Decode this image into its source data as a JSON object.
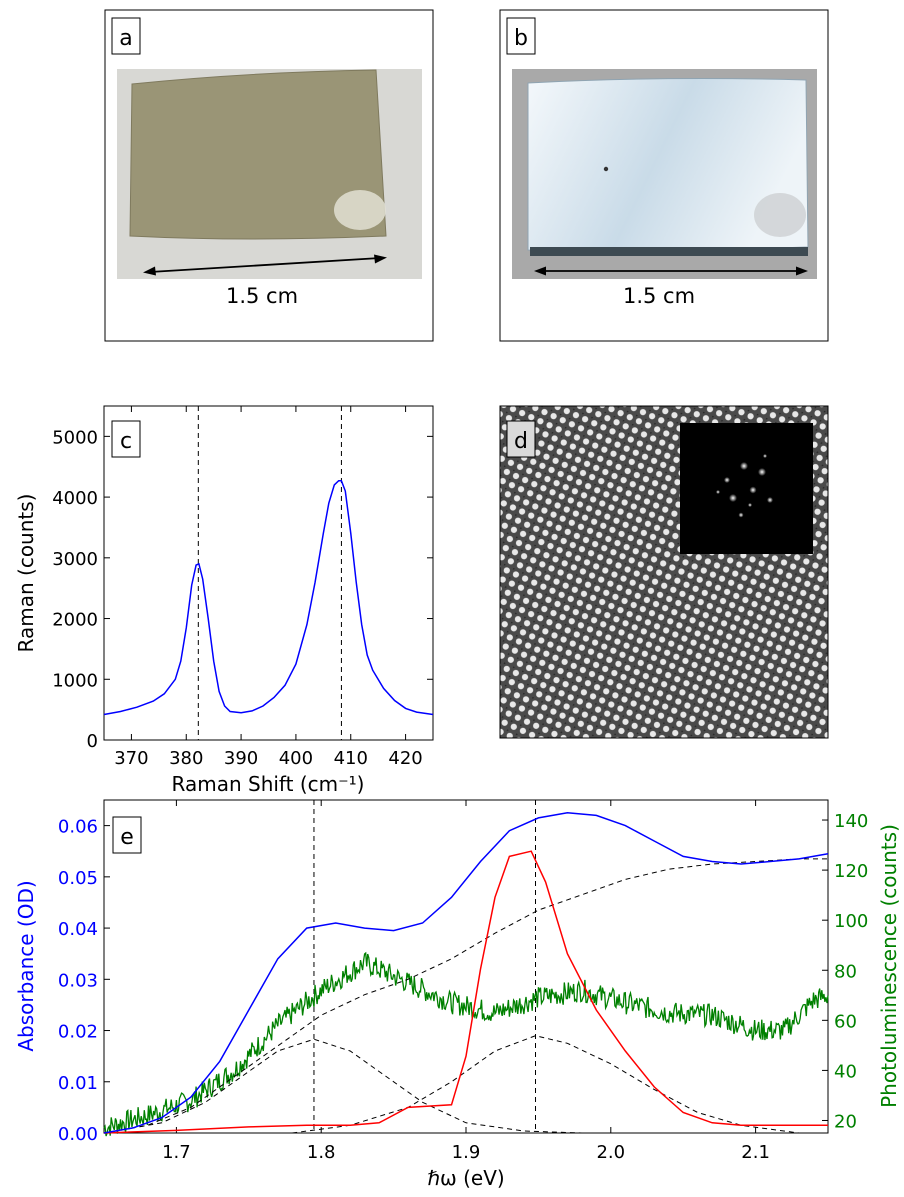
{
  "panels": {
    "a": {
      "label": "a",
      "scale_label": "1.5 cm"
    },
    "b": {
      "label": "b",
      "scale_label": "1.5 cm"
    },
    "c": {
      "label": "c"
    },
    "d": {
      "label": "d"
    },
    "e": {
      "label": "e"
    }
  },
  "colors": {
    "absorbance": "#0000ff",
    "photoluminescence": "#008000",
    "pl_peak": "#ff0000",
    "fit": "#000000",
    "raman": "#0000ff",
    "film_a": "#9a9576",
    "film_b": "#d9e6ee"
  },
  "chart_data": [
    {
      "panel": "c",
      "type": "line",
      "xlabel": "Raman Shift (cm⁻¹)",
      "ylabel": "Raman (counts)",
      "xlim": [
        365,
        425
      ],
      "ylim": [
        0,
        5500
      ],
      "xticks": [
        370,
        380,
        390,
        400,
        410,
        420
      ],
      "yticks": [
        0,
        1000,
        2000,
        3000,
        4000,
        5000
      ],
      "vlines": [
        382.2,
        408.3
      ],
      "series": [
        {
          "x": [
            365,
            368,
            371,
            374,
            376,
            378,
            379,
            380,
            381,
            381.8,
            382.3,
            383,
            384,
            385,
            386,
            387,
            388,
            390,
            392,
            394,
            396,
            398,
            400,
            402,
            403.5,
            405,
            406,
            407,
            407.8,
            408.3,
            409,
            410,
            411,
            412,
            413,
            414,
            416,
            418,
            420,
            422,
            425
          ],
          "values": [
            420,
            470,
            540,
            640,
            760,
            1000,
            1300,
            1850,
            2550,
            2880,
            2900,
            2650,
            2000,
            1300,
            800,
            560,
            470,
            450,
            480,
            560,
            700,
            900,
            1250,
            1900,
            2600,
            3400,
            3900,
            4200,
            4270,
            4270,
            4100,
            3400,
            2600,
            1900,
            1400,
            1150,
            850,
            650,
            520,
            460,
            420
          ]
        }
      ]
    },
    {
      "panel": "e",
      "type": "line",
      "xlabel": "ℏω  (eV)",
      "ylabel": "Absorbance (OD)",
      "ylabel_right": "Photoluminescence (counts)",
      "xlim": [
        1.65,
        2.15
      ],
      "ylim": [
        0.0,
        0.065
      ],
      "ylim_right": [
        15,
        148
      ],
      "xticks": [
        1.7,
        1.8,
        1.9,
        2.0,
        2.1
      ],
      "yticks": [
        0.0,
        0.01,
        0.02,
        0.03,
        0.04,
        0.05,
        0.06
      ],
      "yticks_right": [
        20,
        40,
        60,
        80,
        100,
        120,
        140
      ],
      "vlines": [
        1.795,
        1.948
      ],
      "series": [
        {
          "key": "absorbance",
          "axis": "left",
          "x": [
            1.65,
            1.67,
            1.69,
            1.71,
            1.73,
            1.75,
            1.77,
            1.79,
            1.81,
            1.83,
            1.85,
            1.87,
            1.89,
            1.91,
            1.93,
            1.95,
            1.97,
            1.99,
            2.01,
            2.03,
            2.05,
            2.07,
            2.09,
            2.11,
            2.13,
            2.15
          ],
          "values": [
            0.0,
            0.001,
            0.003,
            0.007,
            0.014,
            0.024,
            0.034,
            0.04,
            0.041,
            0.04,
            0.0395,
            0.041,
            0.046,
            0.053,
            0.059,
            0.0615,
            0.0625,
            0.062,
            0.06,
            0.057,
            0.054,
            0.053,
            0.0525,
            0.053,
            0.0535,
            0.0545
          ]
        },
        {
          "key": "pl_peak",
          "axis": "left",
          "x": [
            1.65,
            1.7,
            1.75,
            1.79,
            1.82,
            1.84,
            1.86,
            1.89,
            1.9,
            1.91,
            1.92,
            1.93,
            1.945,
            1.955,
            1.97,
            1.99,
            2.01,
            2.03,
            2.05,
            2.07,
            2.09,
            2.15
          ],
          "values": [
            0.0,
            0.0005,
            0.0012,
            0.0015,
            0.0015,
            0.002,
            0.005,
            0.0055,
            0.015,
            0.032,
            0.046,
            0.054,
            0.055,
            0.049,
            0.035,
            0.024,
            0.016,
            0.009,
            0.004,
            0.002,
            0.0015,
            0.0015
          ]
        },
        {
          "key": "fit_total",
          "axis": "left",
          "x": [
            1.65,
            1.68,
            1.71,
            1.74,
            1.77,
            1.8,
            1.83,
            1.86,
            1.89,
            1.92,
            1.95,
            1.98,
            2.01,
            2.04,
            2.07,
            2.1,
            2.13,
            2.15
          ],
          "values": [
            0.0,
            0.0015,
            0.005,
            0.011,
            0.017,
            0.023,
            0.027,
            0.03,
            0.034,
            0.039,
            0.0435,
            0.0465,
            0.0495,
            0.0515,
            0.0525,
            0.053,
            0.0535,
            0.0535
          ]
        },
        {
          "key": "fit_a",
          "axis": "left",
          "x": [
            1.65,
            1.69,
            1.72,
            1.75,
            1.77,
            1.795,
            1.82,
            1.84,
            1.87,
            1.9,
            1.94,
            1.98
          ],
          "values": [
            0.0,
            0.002,
            0.006,
            0.012,
            0.016,
            0.0183,
            0.016,
            0.012,
            0.006,
            0.002,
            0.0004,
            0.0
          ]
        },
        {
          "key": "fit_b",
          "axis": "left",
          "x": [
            1.78,
            1.82,
            1.86,
            1.89,
            1.92,
            1.948,
            1.97,
            2.0,
            2.03,
            2.06,
            2.09,
            2.13
          ],
          "values": [
            0.0,
            0.0015,
            0.005,
            0.01,
            0.016,
            0.019,
            0.0175,
            0.0135,
            0.0085,
            0.004,
            0.0015,
            0.0
          ]
        },
        {
          "key": "photoluminescence",
          "axis": "right",
          "x": [
            1.65,
            1.68,
            1.71,
            1.74,
            1.77,
            1.8,
            1.83,
            1.86,
            1.89,
            1.92,
            1.95,
            1.98,
            2.01,
            2.04,
            2.07,
            2.1,
            2.12,
            2.14,
            2.15
          ],
          "values": [
            17,
            22,
            28,
            40,
            58,
            72,
            83,
            75,
            67,
            63,
            69,
            72,
            67,
            63,
            62,
            56,
            56,
            68,
            70
          ]
        }
      ]
    }
  ]
}
